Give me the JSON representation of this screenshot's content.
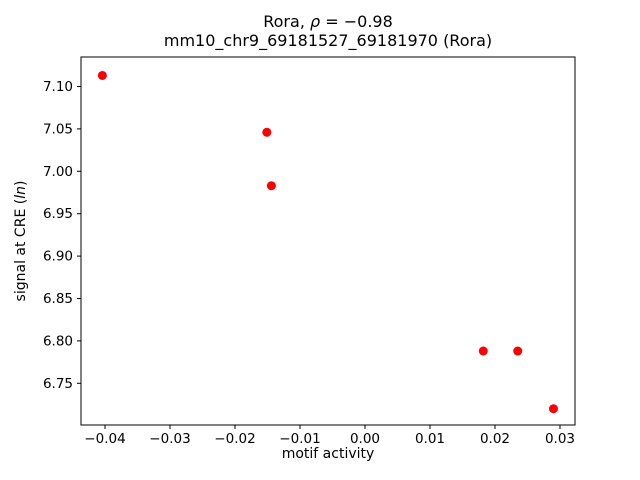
{
  "figure": {
    "background": "#ffffff"
  },
  "chart_data": {
    "type": "scatter",
    "title_parts": {
      "prefix": "Rora, ",
      "rho": "ρ",
      "suffix": " = −0.98"
    },
    "subtitle": "mm10_chr9_69181527_69181970 (Rora)",
    "xlabel": "motif activity",
    "ylabel_parts": {
      "prefix": "signal at CRE (",
      "italic": "ln",
      "suffix": ")"
    },
    "marker_color": "#ff0000",
    "marker_radius": 4.5,
    "points": [
      {
        "x": -0.0404,
        "y": 7.113
      },
      {
        "x": -0.0151,
        "y": 7.046
      },
      {
        "x": -0.0144,
        "y": 6.983
      },
      {
        "x": 0.0182,
        "y": 6.788
      },
      {
        "x": 0.0235,
        "y": 6.788
      },
      {
        "x": 0.029,
        "y": 6.72
      }
    ],
    "xlim": [
      -0.04369,
      0.03231
    ],
    "ylim": [
      6.7008,
      7.1348
    ],
    "xticks": {
      "values": [
        -0.04,
        -0.03,
        -0.02,
        -0.01,
        0.0,
        0.01,
        0.02,
        0.03
      ],
      "labels": [
        "−0.04",
        "−0.03",
        "−0.02",
        "−0.01",
        "0.00",
        "0.01",
        "0.02",
        "0.03"
      ]
    },
    "yticks": {
      "values": [
        6.75,
        6.8,
        6.85,
        6.9,
        6.95,
        7.0,
        7.05,
        7.1
      ],
      "labels": [
        "6.75",
        "6.80",
        "6.85",
        "6.90",
        "6.95",
        "7.00",
        "7.05",
        "7.10"
      ]
    },
    "grid": false,
    "legend": null,
    "axes_color": "#000000"
  }
}
